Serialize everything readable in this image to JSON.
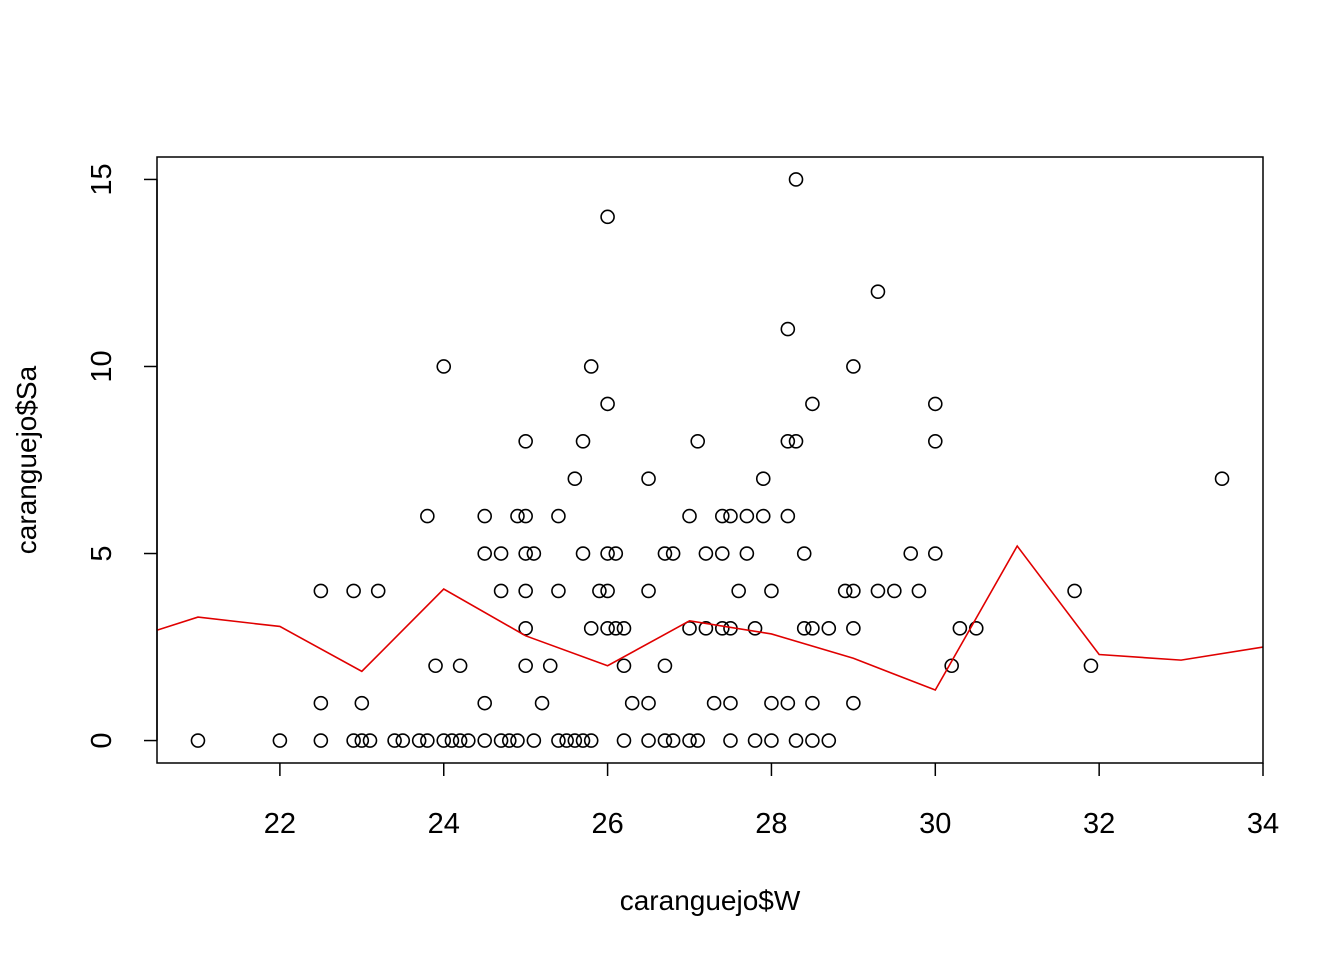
{
  "chart_data": {
    "type": "scatter",
    "title": "",
    "xlabel": "caranguejo$W",
    "ylabel": "caranguejo$Sa",
    "xlim": [
      20.5,
      34
    ],
    "ylim": [
      -0.6,
      15.6
    ],
    "x_ticks": [
      22,
      24,
      26,
      28,
      30,
      32,
      34
    ],
    "y_ticks": [
      0,
      5,
      10,
      15
    ],
    "grid": false,
    "legend": "none",
    "colors": {
      "points": "#000000",
      "line": "#e00000",
      "frame": "#000000"
    },
    "series": [
      {
        "type": "scatter",
        "points": [
          [
            21.0,
            0
          ],
          [
            22.0,
            0
          ],
          [
            22.5,
            4
          ],
          [
            22.5,
            1
          ],
          [
            22.5,
            0
          ],
          [
            22.9,
            4
          ],
          [
            22.9,
            0
          ],
          [
            23.0,
            1
          ],
          [
            23.0,
            0
          ],
          [
            23.1,
            0
          ],
          [
            23.2,
            4
          ],
          [
            23.4,
            0
          ],
          [
            23.5,
            0
          ],
          [
            23.7,
            0
          ],
          [
            23.8,
            6
          ],
          [
            23.8,
            0
          ],
          [
            23.9,
            2
          ],
          [
            24.0,
            10
          ],
          [
            24.0,
            0
          ],
          [
            24.1,
            0
          ],
          [
            24.2,
            2
          ],
          [
            24.2,
            0
          ],
          [
            24.3,
            0
          ],
          [
            24.5,
            6
          ],
          [
            24.5,
            5
          ],
          [
            24.5,
            1
          ],
          [
            24.5,
            0
          ],
          [
            24.7,
            5
          ],
          [
            24.7,
            4
          ],
          [
            24.7,
            0
          ],
          [
            24.8,
            0
          ],
          [
            24.9,
            6
          ],
          [
            24.9,
            0
          ],
          [
            25.0,
            8
          ],
          [
            25.0,
            6
          ],
          [
            25.0,
            5
          ],
          [
            25.0,
            4
          ],
          [
            25.0,
            3
          ],
          [
            25.0,
            2
          ],
          [
            25.1,
            5
          ],
          [
            25.1,
            0
          ],
          [
            25.2,
            1
          ],
          [
            25.3,
            2
          ],
          [
            25.4,
            6
          ],
          [
            25.4,
            4
          ],
          [
            25.4,
            0
          ],
          [
            25.5,
            0
          ],
          [
            25.6,
            7
          ],
          [
            25.6,
            0
          ],
          [
            25.7,
            8
          ],
          [
            25.7,
            5
          ],
          [
            25.7,
            0
          ],
          [
            25.8,
            10
          ],
          [
            25.8,
            3
          ],
          [
            25.8,
            0
          ],
          [
            25.9,
            4
          ],
          [
            26.0,
            14
          ],
          [
            26.0,
            9
          ],
          [
            26.0,
            5
          ],
          [
            26.0,
            4
          ],
          [
            26.0,
            3
          ],
          [
            26.1,
            5
          ],
          [
            26.1,
            3
          ],
          [
            26.2,
            3
          ],
          [
            26.2,
            2
          ],
          [
            26.2,
            0
          ],
          [
            26.3,
            1
          ],
          [
            26.5,
            7
          ],
          [
            26.5,
            4
          ],
          [
            26.5,
            1
          ],
          [
            26.5,
            0
          ],
          [
            26.7,
            5
          ],
          [
            26.7,
            2
          ],
          [
            26.7,
            0
          ],
          [
            26.8,
            5
          ],
          [
            26.8,
            0
          ],
          [
            27.0,
            6
          ],
          [
            27.0,
            3
          ],
          [
            27.0,
            0
          ],
          [
            27.1,
            8
          ],
          [
            27.1,
            0
          ],
          [
            27.2,
            5
          ],
          [
            27.2,
            3
          ],
          [
            27.3,
            1
          ],
          [
            27.4,
            6
          ],
          [
            27.4,
            5
          ],
          [
            27.4,
            3
          ],
          [
            27.5,
            6
          ],
          [
            27.5,
            3
          ],
          [
            27.5,
            1
          ],
          [
            27.5,
            0
          ],
          [
            27.6,
            4
          ],
          [
            27.7,
            6
          ],
          [
            27.7,
            5
          ],
          [
            27.8,
            3
          ],
          [
            27.8,
            0
          ],
          [
            27.9,
            7
          ],
          [
            27.9,
            6
          ],
          [
            28.0,
            4
          ],
          [
            28.0,
            1
          ],
          [
            28.0,
            0
          ],
          [
            28.2,
            11
          ],
          [
            28.2,
            8
          ],
          [
            28.2,
            6
          ],
          [
            28.2,
            1
          ],
          [
            28.3,
            15
          ],
          [
            28.3,
            8
          ],
          [
            28.3,
            0
          ],
          [
            28.4,
            5
          ],
          [
            28.4,
            3
          ],
          [
            28.5,
            9
          ],
          [
            28.5,
            3
          ],
          [
            28.5,
            1
          ],
          [
            28.5,
            0
          ],
          [
            28.7,
            3
          ],
          [
            28.7,
            0
          ],
          [
            28.9,
            4
          ],
          [
            29.0,
            10
          ],
          [
            29.0,
            4
          ],
          [
            29.0,
            3
          ],
          [
            29.0,
            1
          ],
          [
            29.3,
            12
          ],
          [
            29.3,
            4
          ],
          [
            29.5,
            4
          ],
          [
            29.7,
            5
          ],
          [
            29.8,
            4
          ],
          [
            30.0,
            9
          ],
          [
            30.0,
            8
          ],
          [
            30.0,
            5
          ],
          [
            30.2,
            2
          ],
          [
            30.3,
            3
          ],
          [
            30.5,
            3
          ],
          [
            31.7,
            4
          ],
          [
            31.9,
            2
          ],
          [
            33.5,
            7
          ]
        ]
      },
      {
        "type": "line",
        "x": [
          20.0,
          21.0,
          22.0,
          23.0,
          24.0,
          25.0,
          26.0,
          27.0,
          28.0,
          29.0,
          30.0,
          31.0,
          32.0,
          33.0,
          34.0
        ],
        "y": [
          2.6,
          3.3,
          3.05,
          1.85,
          4.05,
          2.8,
          2.0,
          3.2,
          2.85,
          2.2,
          1.35,
          5.2,
          2.3,
          2.15,
          2.5
        ]
      }
    ]
  }
}
